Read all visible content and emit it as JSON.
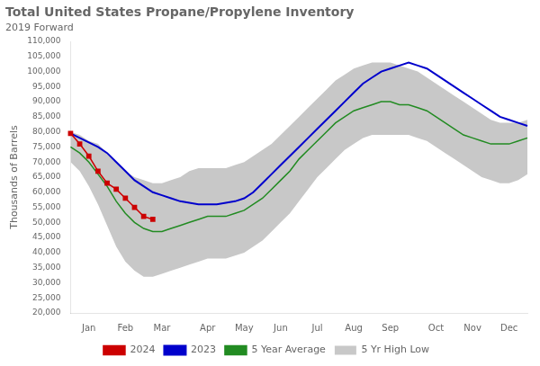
{
  "chart_data": {
    "type": "line",
    "title": "Total United States Propane/Propylene Inventory",
    "subtitle": "2019 Forward",
    "ylabel": "Thousands of Barrels",
    "categories": [
      null,
      null,
      "Jan",
      null,
      null,
      null,
      "Feb",
      null,
      null,
      null,
      "Mar",
      null,
      null,
      null,
      null,
      "Apr",
      null,
      null,
      null,
      "May",
      null,
      null,
      null,
      "Jun",
      null,
      null,
      null,
      "Jul",
      null,
      null,
      null,
      "Aug",
      null,
      null,
      null,
      "Sep",
      null,
      null,
      null,
      null,
      "Oct",
      null,
      null,
      null,
      "Nov",
      null,
      null,
      null,
      "Dec",
      null,
      null
    ],
    "series": [
      {
        "name": "5 Yr High Low",
        "type": "band",
        "color": "#c8c8c8",
        "low": [
          70000,
          67000,
          62000,
          56000,
          49000,
          42000,
          37000,
          34000,
          32000,
          32000,
          33000,
          34000,
          35000,
          36000,
          37000,
          38000,
          38000,
          38000,
          39000,
          40000,
          42000,
          44000,
          47000,
          50000,
          53000,
          57000,
          61000,
          65000,
          68000,
          71000,
          74000,
          76000,
          78000,
          79000,
          79000,
          79000,
          79000,
          79000,
          78000,
          77000,
          75000,
          73000,
          71000,
          69000,
          67000,
          65000,
          64000,
          63000,
          63000,
          64000,
          66000
        ],
        "high": [
          80000,
          79000,
          77000,
          76000,
          73000,
          70000,
          67000,
          65000,
          64000,
          63000,
          63000,
          64000,
          65000,
          67000,
          68000,
          68000,
          68000,
          68000,
          69000,
          70000,
          72000,
          74000,
          76000,
          79000,
          82000,
          85000,
          88000,
          91000,
          94000,
          97000,
          99000,
          101000,
          102000,
          103000,
          103000,
          103000,
          102000,
          101000,
          100000,
          98000,
          96000,
          94000,
          92000,
          90000,
          88000,
          86000,
          84000,
          83000,
          83000,
          83000,
          84000
        ]
      },
      {
        "name": "5 Year Average",
        "color": "#228B22",
        "values": [
          75000,
          73000,
          70000,
          66000,
          62000,
          57000,
          53000,
          50000,
          48000,
          47000,
          47000,
          48000,
          49000,
          50000,
          51000,
          52000,
          52000,
          52000,
          53000,
          54000,
          56000,
          58000,
          61000,
          64000,
          67000,
          71000,
          74000,
          77000,
          80000,
          83000,
          85000,
          87000,
          88000,
          89000,
          90000,
          90000,
          89000,
          89000,
          88000,
          87000,
          85000,
          83000,
          81000,
          79000,
          78000,
          77000,
          76000,
          76000,
          76000,
          77000,
          78000
        ]
      },
      {
        "name": "2024",
        "color": "#cc0000",
        "marker": "square",
        "values": [
          79500,
          76000,
          72000,
          67000,
          63000,
          61000,
          58000,
          55000,
          52000,
          51000,
          null,
          null,
          null,
          null,
          null,
          null,
          null,
          null,
          null,
          null,
          null,
          null,
          null,
          null,
          null,
          null,
          null,
          null,
          null,
          null,
          null,
          null,
          null,
          null,
          null,
          null,
          null,
          null,
          null,
          null,
          null,
          null,
          null,
          null,
          null,
          null,
          null,
          null,
          null,
          null,
          null
        ]
      },
      {
        "name": "2023",
        "color": "#0000cc",
        "values": [
          79500,
          78000,
          76500,
          75000,
          73000,
          70000,
          67000,
          64000,
          62000,
          60000,
          59000,
          58000,
          57000,
          56500,
          56000,
          56000,
          56000,
          56500,
          57000,
          58000,
          60000,
          63000,
          66000,
          69000,
          72000,
          75000,
          78000,
          81000,
          84000,
          87000,
          90000,
          93000,
          96000,
          98000,
          100000,
          101000,
          102000,
          103000,
          102000,
          101000,
          99000,
          97000,
          95000,
          93000,
          91000,
          89000,
          87000,
          85000,
          84000,
          83000,
          82000
        ]
      }
    ],
    "ylim": [
      20000,
      110000
    ],
    "yticks": [
      {
        "value": 20000,
        "label": "20,000"
      },
      {
        "value": 25000,
        "label": "25,000"
      },
      {
        "value": 30000,
        "label": "30,000"
      },
      {
        "value": 35000,
        "label": "35,000"
      },
      {
        "value": 40000,
        "label": "40,000"
      },
      {
        "value": 45000,
        "label": "45,000"
      },
      {
        "value": 50000,
        "label": "50,000"
      },
      {
        "value": 55000,
        "label": "55,000"
      },
      {
        "value": 60000,
        "label": "60,000"
      },
      {
        "value": 65000,
        "label": "65,000"
      },
      {
        "value": 70000,
        "label": "70,000"
      },
      {
        "value": 75000,
        "label": "75,000"
      },
      {
        "value": 80000,
        "label": "80,000"
      },
      {
        "value": 85000,
        "label": "85,000"
      },
      {
        "value": 90000,
        "label": "90,000"
      },
      {
        "value": 95000,
        "label": "95,000"
      },
      {
        "value": 100000,
        "label": "100,000"
      },
      {
        "value": 105000,
        "label": "105,000"
      },
      {
        "value": 110000,
        "label": "110,000"
      }
    ],
    "grid": false,
    "legend": "bottom"
  }
}
